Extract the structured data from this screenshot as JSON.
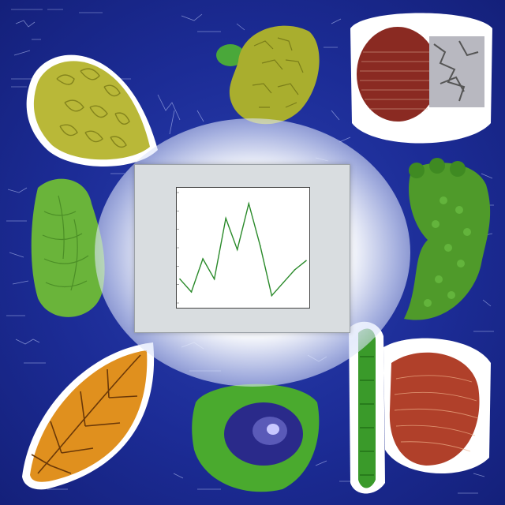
{
  "scene": {
    "background_color": "#1a2a8c",
    "accent_lines": "#cfd8ff",
    "tiles": [
      {
        "name": "yellow-leaf-cells",
        "color": "#b7b83a"
      },
      {
        "name": "yellow-green-blob",
        "color": "#a7ad2e"
      },
      {
        "name": "muscle-anatomy",
        "color": "#8a2a22"
      },
      {
        "name": "green-tissue",
        "color": "#6ab43a"
      },
      {
        "name": "green-spongy-tissue",
        "color": "#4f9a2a"
      },
      {
        "name": "orange-veined-leaf",
        "color": "#e0901e"
      },
      {
        "name": "green-eye-cell",
        "color": "#4aaa2e"
      },
      {
        "name": "green-stalk",
        "color": "#3a9a2a"
      },
      {
        "name": "red-muscle-tissue",
        "color": "#b0402a"
      }
    ]
  },
  "chart_data": {
    "type": "line",
    "title": "",
    "xlabel": "",
    "ylabel": "",
    "x": [
      0,
      1,
      2,
      3,
      4,
      5,
      6,
      7,
      8,
      9,
      10,
      11
    ],
    "series": [
      {
        "values": [
          1.3,
          0.6,
          2.4,
          1.3,
          4.6,
          2.9,
          5.4,
          3.1,
          0.4,
          1.1,
          1.8,
          2.3
        ],
        "color": "#2a8a2a"
      }
    ],
    "ylim": [
      0,
      6
    ],
    "xlim": [
      0,
      11
    ],
    "grid": false
  }
}
